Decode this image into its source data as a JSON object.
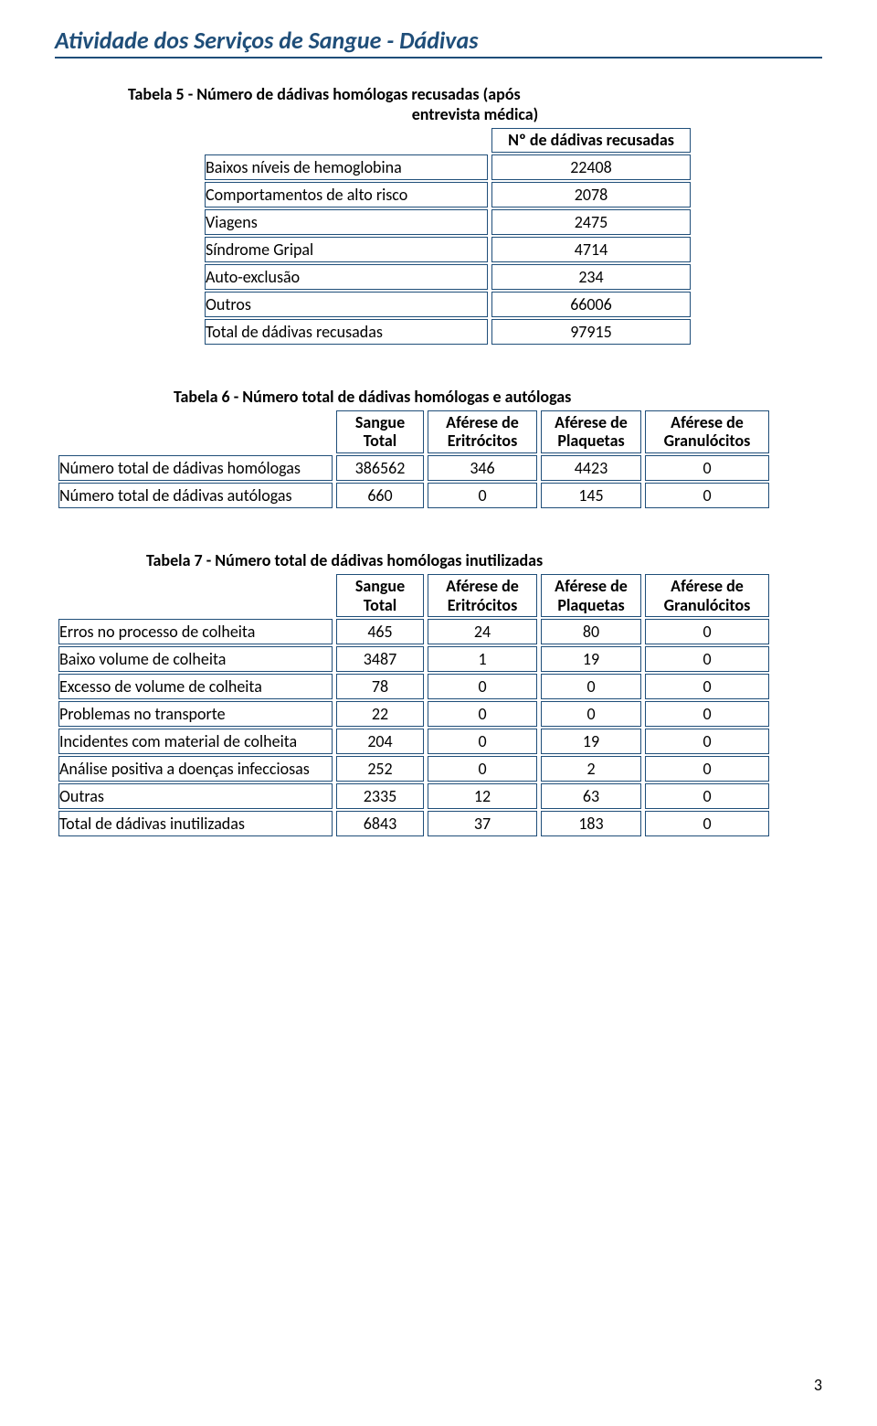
{
  "header": {
    "title": "Atividade dos Serviços de Sangue - Dádivas"
  },
  "table5": {
    "caption_line1": "Tabela 5 - Número de dádivas homólogas recusadas (após",
    "caption_line2": "entrevista médica)",
    "col_header": "Nº de dádivas recusadas",
    "rows": [
      {
        "label": "Baixos níveis de hemoglobina",
        "value": "22408"
      },
      {
        "label": "Comportamentos de alto risco",
        "value": "2078"
      },
      {
        "label": "Viagens",
        "value": "2475"
      },
      {
        "label": "Síndrome Gripal",
        "value": "4714"
      },
      {
        "label": "Auto-exclusão",
        "value": "234"
      },
      {
        "label": "Outros",
        "value": "66006"
      },
      {
        "label": "Total de dádivas recusadas",
        "value": "97915"
      }
    ]
  },
  "table6": {
    "caption": "Tabela 6 - Número total de dádivas homólogas e autólogas",
    "headers": {
      "c1a": "Sangue",
      "c1b": "Total",
      "c2a": "Aférese de",
      "c2b": "Eritrócitos",
      "c3a": "Aférese de",
      "c3b": "Plaquetas",
      "c4a": "Aférese de",
      "c4b": "Granulócitos"
    },
    "rows": [
      {
        "label": "Número total de dádivas homólogas",
        "v1": "386562",
        "v2": "346",
        "v3": "4423",
        "v4": "0"
      },
      {
        "label": "Número total de dádivas autólogas",
        "v1": "660",
        "v2": "0",
        "v3": "145",
        "v4": "0"
      }
    ]
  },
  "table7": {
    "caption": "Tabela 7 - Número total de dádivas homólogas inutilizadas",
    "headers": {
      "c1a": "Sangue",
      "c1b": "Total",
      "c2a": "Aférese de",
      "c2b": "Eritrócitos",
      "c3a": "Aférese de",
      "c3b": "Plaquetas",
      "c4a": "Aférese de",
      "c4b": "Granulócitos"
    },
    "rows": [
      {
        "label": "Erros no processo de colheita",
        "v1": "465",
        "v2": "24",
        "v3": "80",
        "v4": "0"
      },
      {
        "label": "Baixo volume de colheita",
        "v1": "3487",
        "v2": "1",
        "v3": "19",
        "v4": "0"
      },
      {
        "label": "Excesso de volume de colheita",
        "v1": "78",
        "v2": "0",
        "v3": "0",
        "v4": "0"
      },
      {
        "label": "Problemas no transporte",
        "v1": "22",
        "v2": "0",
        "v3": "0",
        "v4": "0"
      },
      {
        "label": "Incidentes com material de colheita",
        "v1": "204",
        "v2": "0",
        "v3": "19",
        "v4": "0"
      },
      {
        "label": "Análise positiva a doenças infecciosas",
        "v1": "252",
        "v2": "0",
        "v3": "2",
        "v4": "0"
      },
      {
        "label": "Outras",
        "v1": "2335",
        "v2": "12",
        "v3": "63",
        "v4": "0"
      },
      {
        "label": "Total de dádivas inutilizadas",
        "v1": "6843",
        "v2": "37",
        "v3": "183",
        "v4": "0"
      }
    ]
  },
  "page_number": "3",
  "colors": {
    "accent": "#1f4e79",
    "text": "#000000",
    "background": "#ffffff"
  }
}
